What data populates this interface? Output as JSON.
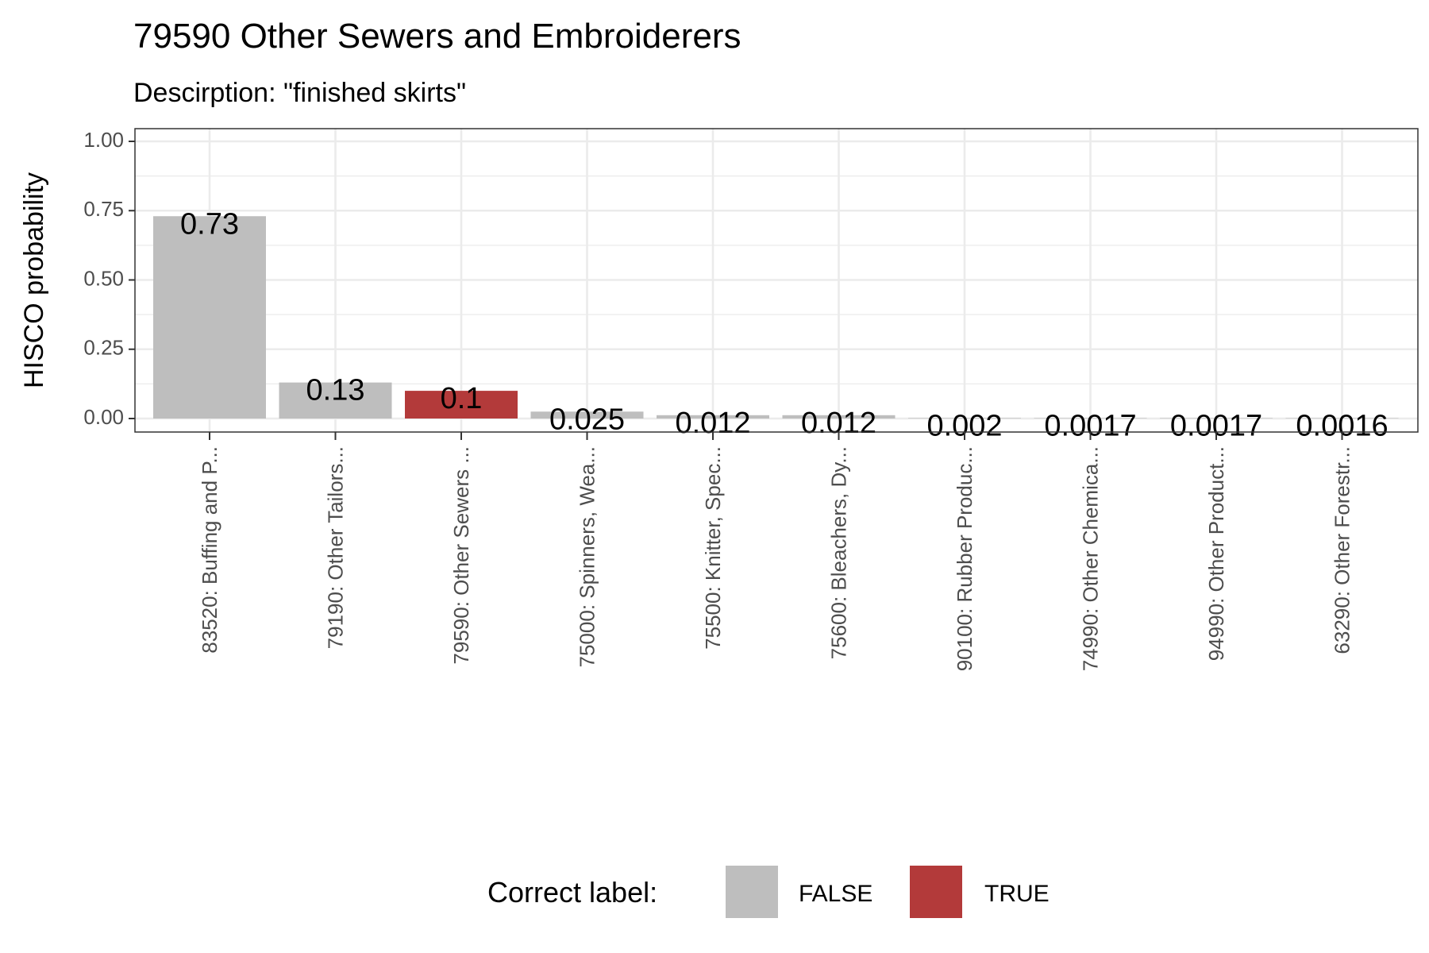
{
  "chart_data": {
    "type": "bar",
    "title": "79590 Other Sewers and Embroiderers",
    "subtitle": "Descirption: \"finished skirts\"",
    "xlabel": "",
    "ylabel": "HISCO probability",
    "ylim": [
      0,
      1
    ],
    "y_ticks": [
      "0.00",
      "0.25",
      "0.50",
      "0.75",
      "1.00"
    ],
    "categories": [
      "83520: Buffing and P...",
      "79190: Other Tailors...",
      "79590: Other Sewers ...",
      "75000: Spinners, Wea...",
      "75500: Knitter, Spec...",
      "75600: Bleachers, Dy...",
      "90100: Rubber Produc...",
      "74990: Other Chemica...",
      "94990: Other Product...",
      "63290: Other Forestr..."
    ],
    "values": [
      0.73,
      0.13,
      0.1,
      0.025,
      0.012,
      0.012,
      0.002,
      0.0017,
      0.0017,
      0.0016
    ],
    "data_labels": [
      "0.73",
      "0.13",
      "0.1",
      "0.025",
      "0.012",
      "0.012",
      "0.002",
      "0.0017",
      "0.0017",
      "0.0016"
    ],
    "correct": [
      false,
      false,
      true,
      false,
      false,
      false,
      false,
      false,
      false,
      false
    ],
    "grid": true,
    "legend": {
      "title": "Correct label:",
      "position": "bottom",
      "items": [
        {
          "label": "FALSE",
          "color": "#bebebe"
        },
        {
          "label": "TRUE",
          "color": "#b33a3a"
        }
      ]
    }
  }
}
